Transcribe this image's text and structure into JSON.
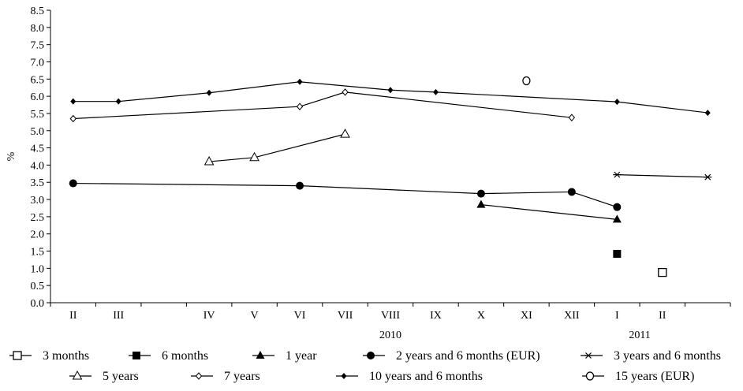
{
  "chart_data": {
    "type": "line",
    "title": "",
    "ylabel": "%",
    "xlabel": "",
    "ylim": [
      0,
      8.5
    ],
    "y_ticks": [
      "0.0",
      "0.5",
      "1.0",
      "1.5",
      "2.0",
      "2.5",
      "3.0",
      "3.5",
      "4.0",
      "4.5",
      "5.0",
      "5.5",
      "6.0",
      "6.5",
      "7.0",
      "7.5",
      "8.0",
      "8.5"
    ],
    "categories": [
      "II",
      "III",
      "IV",
      "V",
      "VI",
      "VII",
      "VIII",
      "IX",
      "X",
      "XI",
      "XII",
      "I",
      "II"
    ],
    "year_labels": [
      {
        "label": "2010",
        "at_category": 6
      },
      {
        "label": "2011",
        "at_category": 11.5
      }
    ],
    "grid": false,
    "legend_position": "bottom",
    "series": [
      {
        "name": "3 months",
        "marker": "square-open",
        "points": [
          {
            "x": 12,
            "y": 0.88
          }
        ]
      },
      {
        "name": "6 months",
        "marker": "square-filled",
        "points": [
          {
            "x": 11,
            "y": 1.42
          }
        ]
      },
      {
        "name": "1 year",
        "marker": "triangle-filled",
        "points": [
          {
            "x": 8,
            "y": 2.85
          },
          {
            "x": 11,
            "y": 2.42
          }
        ]
      },
      {
        "name": "2 years and 6 months (EUR)",
        "marker": "circle-filled",
        "points": [
          {
            "x": 0,
            "y": 3.47
          },
          {
            "x": 4,
            "y": 3.4
          },
          {
            "x": 8,
            "y": 3.17
          },
          {
            "x": 10,
            "y": 3.22
          },
          {
            "x": 11,
            "y": 2.78
          }
        ]
      },
      {
        "name": "3 years and 6 months",
        "marker": "asterisk",
        "points": [
          {
            "x": 11,
            "y": 3.72
          },
          {
            "x": 13,
            "y": 3.65
          }
        ]
      },
      {
        "name": "5 years",
        "marker": "triangle-open",
        "points": [
          {
            "x": 2,
            "y": 4.1
          },
          {
            "x": 3,
            "y": 4.22
          },
          {
            "x": 5,
            "y": 4.9
          }
        ]
      },
      {
        "name": "7 years",
        "marker": "diamond-open",
        "points": [
          {
            "x": 0,
            "y": 5.35
          },
          {
            "x": 4,
            "y": 5.7
          },
          {
            "x": 5,
            "y": 6.12
          },
          {
            "x": 10,
            "y": 5.38
          }
        ]
      },
      {
        "name": "10 years and 6 months",
        "marker": "diamond-filled",
        "points": [
          {
            "x": 0,
            "y": 5.85
          },
          {
            "x": 1,
            "y": 5.85
          },
          {
            "x": 2,
            "y": 6.1
          },
          {
            "x": 4,
            "y": 6.42
          },
          {
            "x": 6,
            "y": 6.18
          },
          {
            "x": 7,
            "y": 6.12
          },
          {
            "x": 11,
            "y": 5.84
          },
          {
            "x": 13,
            "y": 5.52
          }
        ]
      },
      {
        "name": "15 years (EUR)",
        "marker": "circle-open",
        "points": [
          {
            "x": 9,
            "y": 6.45
          }
        ]
      }
    ]
  }
}
